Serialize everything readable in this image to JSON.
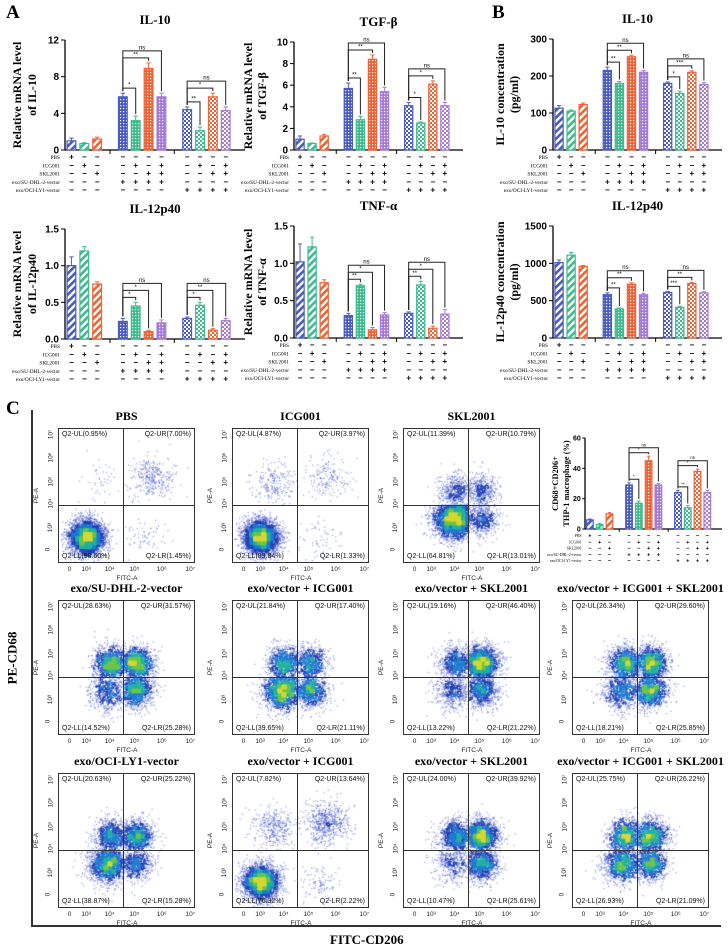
{
  "panels": {
    "A": "A",
    "B": "B",
    "C": "C"
  },
  "colors": {
    "blue": "#4a5cc4",
    "green": "#3dbb8c",
    "orange": "#ef6235",
    "purple": "#a57ad6"
  },
  "conditions": {
    "labels": [
      "PBS",
      "ICG001",
      "SKL2001",
      "exo/SU-DHL-2-vector",
      "exo/OCI-LY1-vector"
    ],
    "rows": [
      [
        "+",
        "−",
        "−",
        "−",
        "−",
        "−",
        "−",
        "−",
        "−",
        "−",
        "−"
      ],
      [
        "−",
        "+",
        "−",
        "−",
        "+",
        "−",
        "+",
        "−",
        "+",
        "−",
        "+"
      ],
      [
        "−",
        "−",
        "+",
        "−",
        "−",
        "+",
        "+",
        "−",
        "−",
        "+",
        "+"
      ],
      [
        "−",
        "−",
        "−",
        "+",
        "+",
        "+",
        "+",
        "−",
        "−",
        "−",
        "−"
      ],
      [
        "−",
        "−",
        "−",
        "−",
        "−",
        "−",
        "−",
        "+",
        "+",
        "+",
        "+"
      ]
    ]
  },
  "chart_data": [
    {
      "id": "A-IL10",
      "type": "bar",
      "title": "IL-10",
      "ylabel": [
        "Relative mRNA level",
        "of IL-10"
      ],
      "ylim": [
        0,
        12
      ],
      "yticks": [
        "0",
        "4",
        "8",
        "12"
      ],
      "values": [
        1.0,
        0.7,
        1.2,
        5.8,
        3.2,
        8.9,
        5.8,
        4.4,
        2.1,
        5.8,
        4.3
      ],
      "errors": [
        0.3,
        0.1,
        0.2,
        0.4,
        0.5,
        0.6,
        0.4,
        0.3,
        0.4,
        0.4,
        0.4
      ],
      "significance": [
        [
          "*",
          "**",
          "ns"
        ],
        [
          "**",
          "*",
          "ns"
        ]
      ]
    },
    {
      "id": "A-TGFb",
      "type": "bar",
      "title": "TGF-β",
      "ylabel": [
        "Relative mRNA level",
        "of TGF-β"
      ],
      "ylim": [
        0,
        10
      ],
      "yticks": [
        "0",
        "2",
        "4",
        "6",
        "8",
        "10"
      ],
      "values": [
        1.0,
        0.6,
        1.3,
        5.7,
        2.8,
        8.4,
        5.4,
        4.1,
        2.5,
        6.1,
        4.1
      ],
      "errors": [
        0.3,
        0.05,
        0.15,
        0.5,
        0.3,
        0.4,
        0.4,
        0.3,
        0.1,
        0.3,
        0.3
      ],
      "significance": [
        [
          "**",
          "**",
          "ns"
        ],
        [
          "*",
          "*",
          "ns"
        ]
      ]
    },
    {
      "id": "B-IL10",
      "type": "bar",
      "title": "IL-10",
      "ylabel": [
        "IL-10 concentration",
        "(pg/ml)"
      ],
      "ylim": [
        0,
        300
      ],
      "yticks": [
        "0",
        "100",
        "200",
        "300"
      ],
      "values": [
        113,
        105,
        123,
        215,
        180,
        252,
        210,
        180,
        153,
        210,
        177
      ],
      "errors": [
        7,
        3,
        4,
        9,
        5,
        4,
        5,
        4,
        6,
        4,
        5
      ],
      "significance": [
        [
          "**",
          "**",
          "ns"
        ],
        [
          "*",
          "***",
          "ns"
        ]
      ]
    },
    {
      "id": "A-IL12p40",
      "type": "bar",
      "title": "IL-12p40",
      "ylabel": [
        "Relative mRNA level",
        "of IL-12p40"
      ],
      "ylim": [
        0,
        1.5
      ],
      "yticks": [
        "0.0",
        "0.5",
        "1.0",
        "1.5"
      ],
      "values": [
        1.0,
        1.2,
        0.75,
        0.24,
        0.45,
        0.1,
        0.22,
        0.28,
        0.46,
        0.12,
        0.25
      ],
      "errors": [
        0.12,
        0.06,
        0.03,
        0.04,
        0.05,
        0.02,
        0.04,
        0.02,
        0.04,
        0.02,
        0.03
      ],
      "significance": [
        [
          "*",
          "*",
          "ns"
        ],
        [
          "*",
          "**",
          "ns"
        ]
      ]
    },
    {
      "id": "A-TNFa",
      "type": "bar",
      "title": "TNF-α",
      "ylabel": [
        "Relative mRNA level",
        "of TNF-α"
      ],
      "ylim": [
        0,
        1.5
      ],
      "yticks": [
        "0.0",
        "0.5",
        "1.0",
        "1.5"
      ],
      "values": [
        1.02,
        1.22,
        0.74,
        0.3,
        0.7,
        0.11,
        0.31,
        0.33,
        0.71,
        0.13,
        0.32
      ],
      "errors": [
        0.24,
        0.13,
        0.04,
        0.03,
        0.02,
        0.03,
        0.03,
        0.02,
        0.05,
        0.03,
        0.06
      ],
      "significance": [
        [
          "**",
          "*",
          "ns"
        ],
        [
          "**",
          "*",
          "ns"
        ]
      ]
    },
    {
      "id": "B-IL12p40",
      "type": "bar",
      "title": "IL-12p40",
      "ylabel": [
        "IL-12p40 concentration",
        "(pg/ml)"
      ],
      "ylim": [
        0,
        1500
      ],
      "yticks": [
        "0",
        "500",
        "1000",
        "1500"
      ],
      "values": [
        1010,
        1110,
        960,
        580,
        390,
        720,
        580,
        610,
        410,
        730,
        605
      ],
      "errors": [
        35,
        35,
        12,
        25,
        12,
        20,
        20,
        15,
        15,
        15,
        15
      ],
      "significance": [
        [
          "**",
          "**",
          "ns"
        ],
        [
          "***",
          "**",
          "ns"
        ]
      ]
    },
    {
      "id": "C-CD68CD206",
      "type": "bar",
      "title": "",
      "ylabel": [
        "CD68+CD206+",
        "THP-1 macrophage (%)"
      ],
      "ylim": [
        0,
        60
      ],
      "yticks": [
        "0",
        "20",
        "40",
        "60"
      ],
      "values": [
        6,
        3,
        10,
        29,
        17,
        45,
        29,
        24,
        14,
        38,
        24
      ],
      "errors": [
        0.6,
        0.8,
        0.8,
        1.5,
        1.5,
        3,
        1,
        1.5,
        1.5,
        1.5,
        1.5
      ],
      "significance": [
        [
          "*",
          "*",
          "ns"
        ],
        [
          "**",
          "*",
          "ns"
        ]
      ]
    }
  ],
  "flow": {
    "y_axis_label": "PE-CD68",
    "x_axis_label": "FITC-CD206",
    "channel_x": "FITC-A",
    "channel_y": "PE-A",
    "x_ticks": [
      "0",
      "10³",
      "10⁴",
      "10⁵",
      "10⁶",
      "10⁷"
    ],
    "y_ticks": [
      "0",
      "10³",
      "10⁴",
      "10⁵",
      "10⁶",
      "10⁷"
    ],
    "plots": [
      {
        "title": "PBS",
        "UL": "Q2-UL(0.95%)",
        "UR": "Q2-UR(7.00%)",
        "LL": "Q2-LL(90.60%)",
        "LR": "Q2-LR(1.45%)"
      },
      {
        "title": "ICG001",
        "UL": "Q2-UL(4.87%)",
        "UR": "Q2-UR(3.97%)",
        "LL": "Q2-LL(89.84%)",
        "LR": "Q2-LR(1.33%)"
      },
      {
        "title": "SKL2001",
        "UL": "Q2-UL(11.39%)",
        "UR": "Q2-UR(10.79%)",
        "LL": "Q2-LL(64.81%)",
        "LR": "Q2-LR(13.01%)"
      },
      {
        "title": "exo/SU-DHL-2-vector",
        "UL": "Q2-UL(28.63%)",
        "UR": "Q2-UR(31.57%)",
        "LL": "Q2-LL(14.52%)",
        "LR": "Q2-LR(25.28%)"
      },
      {
        "title": "exo/vector + ICG001",
        "UL": "Q2-UL(21.84%)",
        "UR": "Q2-UR(17.40%)",
        "LL": "Q2-LL(39.65%)",
        "LR": "Q2-LR(21.11%)"
      },
      {
        "title": "exo/vector + SKL2001",
        "UL": "Q2-UL(19.16%)",
        "UR": "Q2-UR(46.40%)",
        "LL": "Q2-LL(13.22%)",
        "LR": "Q2-LR(21.22%)"
      },
      {
        "title": "exo/vector + ICG001 + SKL2001",
        "UL": "Q2-UL(26.34%)",
        "UR": "Q2-UR(29.60%)",
        "LL": "Q2-LL(18.21%)",
        "LR": "Q2-LR(25.85%)"
      },
      {
        "title": "exo/OCI-LY1-vector",
        "UL": "Q2-UL(20.63%)",
        "UR": "Q2-UR(25.22%)",
        "LL": "Q2-LL(38.87%)",
        "LR": "Q2-LR(15.28%)"
      },
      {
        "title": "exo/vector + ICG001",
        "UL": "Q2-UL(7.82%)",
        "UR": "Q2-UR(13.64%)",
        "LL": "Q2-LL(76.32%)",
        "LR": "Q2-LR(2.22%)"
      },
      {
        "title": "exo/vector + SKL2001",
        "UL": "Q2-UL(24.00%)",
        "UR": "Q2-UR(39.92%)",
        "LL": "Q2-LL(10.47%)",
        "LR": "Q2-LR(25.61%)"
      },
      {
        "title": "exo/vector + ICG001 + SKL2001",
        "UL": "Q2-UL(25.75%)",
        "UR": "Q2-UR(26.22%)",
        "LL": "Q2-LL(26.93%)",
        "LR": "Q2-LR(21.09%)"
      }
    ]
  }
}
